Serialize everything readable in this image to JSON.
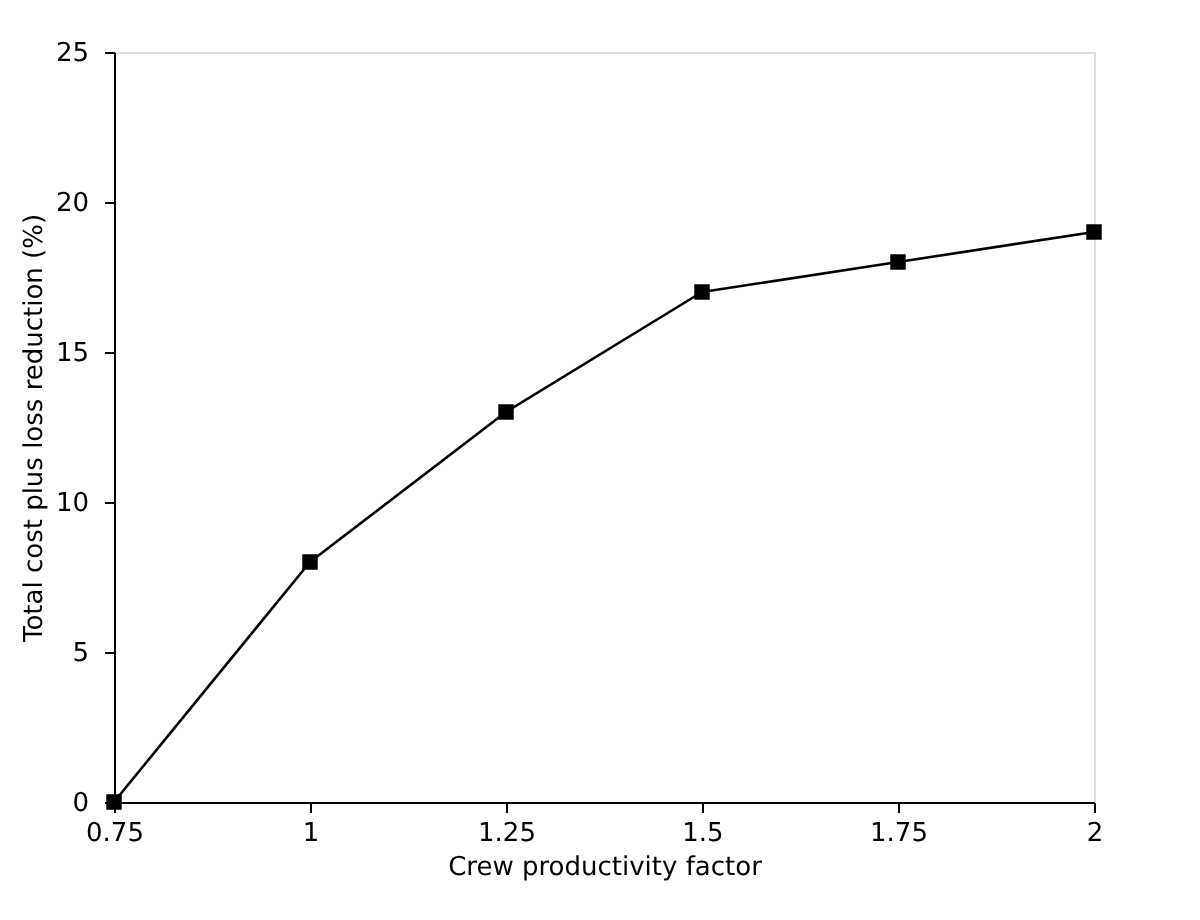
{
  "chart_data": {
    "type": "line",
    "xlabel": "Crew productivity factor",
    "ylabel": "Total cost plus loss reduction (%)",
    "x": [
      0.75,
      1,
      1.25,
      1.5,
      1.75,
      2
    ],
    "series": [
      {
        "color": "#000000",
        "values": [
          0,
          8,
          13,
          17,
          18,
          19
        ]
      }
    ],
    "xlim": [
      0.75,
      2
    ],
    "xticks": [
      0.75,
      1,
      1.25,
      1.5,
      1.75,
      2
    ],
    "ylim": [
      0,
      25
    ],
    "yticks": [
      0,
      5,
      10,
      15,
      20,
      25
    ],
    "grid": false,
    "marker": "square",
    "line_style": "solid"
  }
}
